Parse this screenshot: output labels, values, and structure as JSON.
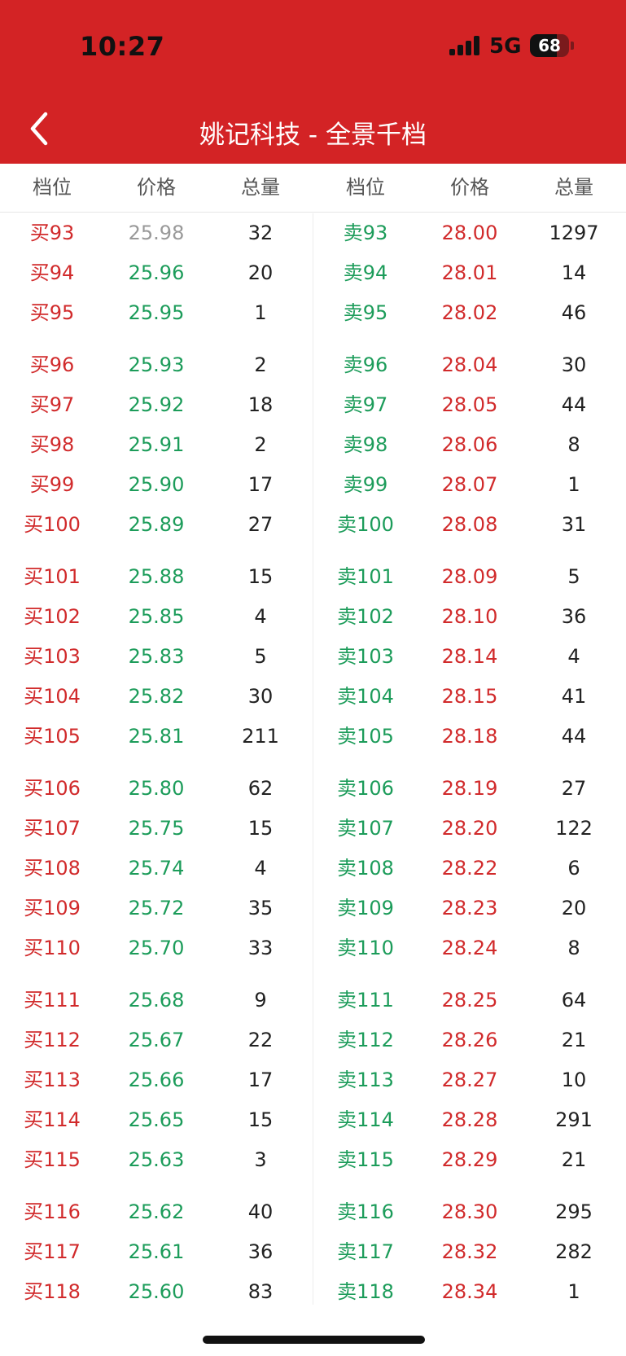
{
  "status": {
    "time": "10:27",
    "network": "5G",
    "battery": "68",
    "battery_level": 0.68
  },
  "header": {
    "title": "姚记科技 - 全景千档",
    "back_icon": "chevron-left-icon"
  },
  "columns": [
    "档位",
    "价格",
    "总量",
    "档位",
    "价格",
    "总量"
  ],
  "colors": {
    "bar": "#d32325",
    "buy": "#d12a2b",
    "sell": "#1c9c5a",
    "up": "#d12a2b",
    "down": "#1c9c5a",
    "flat": "#999999"
  },
  "buy": [
    {
      "level": "买93",
      "price": "25.98",
      "volume": "32",
      "tone": "flat"
    },
    {
      "level": "买94",
      "price": "25.96",
      "volume": "20",
      "tone": "down"
    },
    {
      "level": "买95",
      "price": "25.95",
      "volume": "1",
      "tone": "down"
    },
    {
      "level": "买96",
      "price": "25.93",
      "volume": "2",
      "tone": "down"
    },
    {
      "level": "买97",
      "price": "25.92",
      "volume": "18",
      "tone": "down"
    },
    {
      "level": "买98",
      "price": "25.91",
      "volume": "2",
      "tone": "down"
    },
    {
      "level": "买99",
      "price": "25.90",
      "volume": "17",
      "tone": "down"
    },
    {
      "level": "买100",
      "price": "25.89",
      "volume": "27",
      "tone": "down"
    },
    {
      "level": "买101",
      "price": "25.88",
      "volume": "15",
      "tone": "down"
    },
    {
      "level": "买102",
      "price": "25.85",
      "volume": "4",
      "tone": "down"
    },
    {
      "level": "买103",
      "price": "25.83",
      "volume": "5",
      "tone": "down"
    },
    {
      "level": "买104",
      "price": "25.82",
      "volume": "30",
      "tone": "down"
    },
    {
      "level": "买105",
      "price": "25.81",
      "volume": "211",
      "tone": "down"
    },
    {
      "level": "买106",
      "price": "25.80",
      "volume": "62",
      "tone": "down"
    },
    {
      "level": "买107",
      "price": "25.75",
      "volume": "15",
      "tone": "down"
    },
    {
      "level": "买108",
      "price": "25.74",
      "volume": "4",
      "tone": "down"
    },
    {
      "level": "买109",
      "price": "25.72",
      "volume": "35",
      "tone": "down"
    },
    {
      "level": "买110",
      "price": "25.70",
      "volume": "33",
      "tone": "down"
    },
    {
      "level": "买111",
      "price": "25.68",
      "volume": "9",
      "tone": "down"
    },
    {
      "level": "买112",
      "price": "25.67",
      "volume": "22",
      "tone": "down"
    },
    {
      "level": "买113",
      "price": "25.66",
      "volume": "17",
      "tone": "down"
    },
    {
      "level": "买114",
      "price": "25.65",
      "volume": "15",
      "tone": "down"
    },
    {
      "level": "买115",
      "price": "25.63",
      "volume": "3",
      "tone": "down"
    },
    {
      "level": "买116",
      "price": "25.62",
      "volume": "40",
      "tone": "down"
    },
    {
      "level": "买117",
      "price": "25.61",
      "volume": "36",
      "tone": "down"
    },
    {
      "level": "买118",
      "price": "25.60",
      "volume": "83",
      "tone": "down"
    }
  ],
  "sell": [
    {
      "level": "卖93",
      "price": "28.00",
      "volume": "1297",
      "tone": "up"
    },
    {
      "level": "卖94",
      "price": "28.01",
      "volume": "14",
      "tone": "up"
    },
    {
      "level": "卖95",
      "price": "28.02",
      "volume": "46",
      "tone": "up"
    },
    {
      "level": "卖96",
      "price": "28.04",
      "volume": "30",
      "tone": "up"
    },
    {
      "level": "卖97",
      "price": "28.05",
      "volume": "44",
      "tone": "up"
    },
    {
      "level": "卖98",
      "price": "28.06",
      "volume": "8",
      "tone": "up"
    },
    {
      "level": "卖99",
      "price": "28.07",
      "volume": "1",
      "tone": "up"
    },
    {
      "level": "卖100",
      "price": "28.08",
      "volume": "31",
      "tone": "up"
    },
    {
      "level": "卖101",
      "price": "28.09",
      "volume": "5",
      "tone": "up"
    },
    {
      "level": "卖102",
      "price": "28.10",
      "volume": "36",
      "tone": "up"
    },
    {
      "level": "卖103",
      "price": "28.14",
      "volume": "4",
      "tone": "up"
    },
    {
      "level": "卖104",
      "price": "28.15",
      "volume": "41",
      "tone": "up"
    },
    {
      "level": "卖105",
      "price": "28.18",
      "volume": "44",
      "tone": "up"
    },
    {
      "level": "卖106",
      "price": "28.19",
      "volume": "27",
      "tone": "up"
    },
    {
      "level": "卖107",
      "price": "28.20",
      "volume": "122",
      "tone": "up"
    },
    {
      "level": "卖108",
      "price": "28.22",
      "volume": "6",
      "tone": "up"
    },
    {
      "level": "卖109",
      "price": "28.23",
      "volume": "20",
      "tone": "up"
    },
    {
      "level": "卖110",
      "price": "28.24",
      "volume": "8",
      "tone": "up"
    },
    {
      "level": "卖111",
      "price": "28.25",
      "volume": "64",
      "tone": "up"
    },
    {
      "level": "卖112",
      "price": "28.26",
      "volume": "21",
      "tone": "up"
    },
    {
      "level": "卖113",
      "price": "28.27",
      "volume": "10",
      "tone": "up"
    },
    {
      "level": "卖114",
      "price": "28.28",
      "volume": "291",
      "tone": "up"
    },
    {
      "level": "卖115",
      "price": "28.29",
      "volume": "21",
      "tone": "up"
    },
    {
      "level": "卖116",
      "price": "28.30",
      "volume": "295",
      "tone": "up"
    },
    {
      "level": "卖117",
      "price": "28.32",
      "volume": "282",
      "tone": "up"
    },
    {
      "level": "卖118",
      "price": "28.34",
      "volume": "1",
      "tone": "up"
    }
  ]
}
